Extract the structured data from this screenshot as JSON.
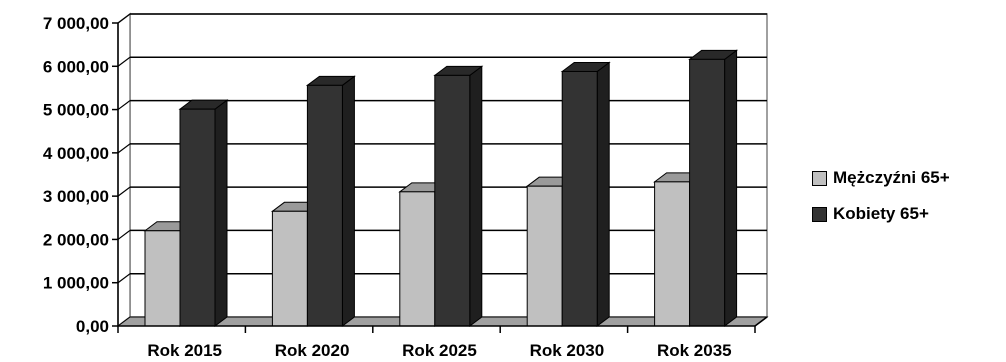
{
  "chart_data": {
    "type": "bar",
    "title": "",
    "xlabel": "",
    "ylabel": "",
    "categories": [
      "Rok 2015",
      "Rok 2020",
      "Rok 2025",
      "Rok 2030",
      "Rok 2035"
    ],
    "series": [
      {
        "name": "Mężczyźni 65+",
        "color": "#c0c0c0",
        "values": [
          2200,
          2650,
          3100,
          3230,
          3330
        ]
      },
      {
        "name": "Kobiety 65+",
        "color": "#333333",
        "values": [
          5010,
          5560,
          5790,
          5880,
          6160
        ]
      }
    ],
    "ylim": [
      0,
      7000
    ],
    "yticks": [
      0,
      1000,
      2000,
      3000,
      4000,
      5000,
      6000,
      7000
    ],
    "ytick_labels": [
      "0,00",
      "1 000,00",
      "2 000,00",
      "3 000,00",
      "4 000,00",
      "5 000,00",
      "6 000,00",
      "7 000,00"
    ],
    "grid": true,
    "legend_position": "right",
    "style": "3d-column"
  }
}
